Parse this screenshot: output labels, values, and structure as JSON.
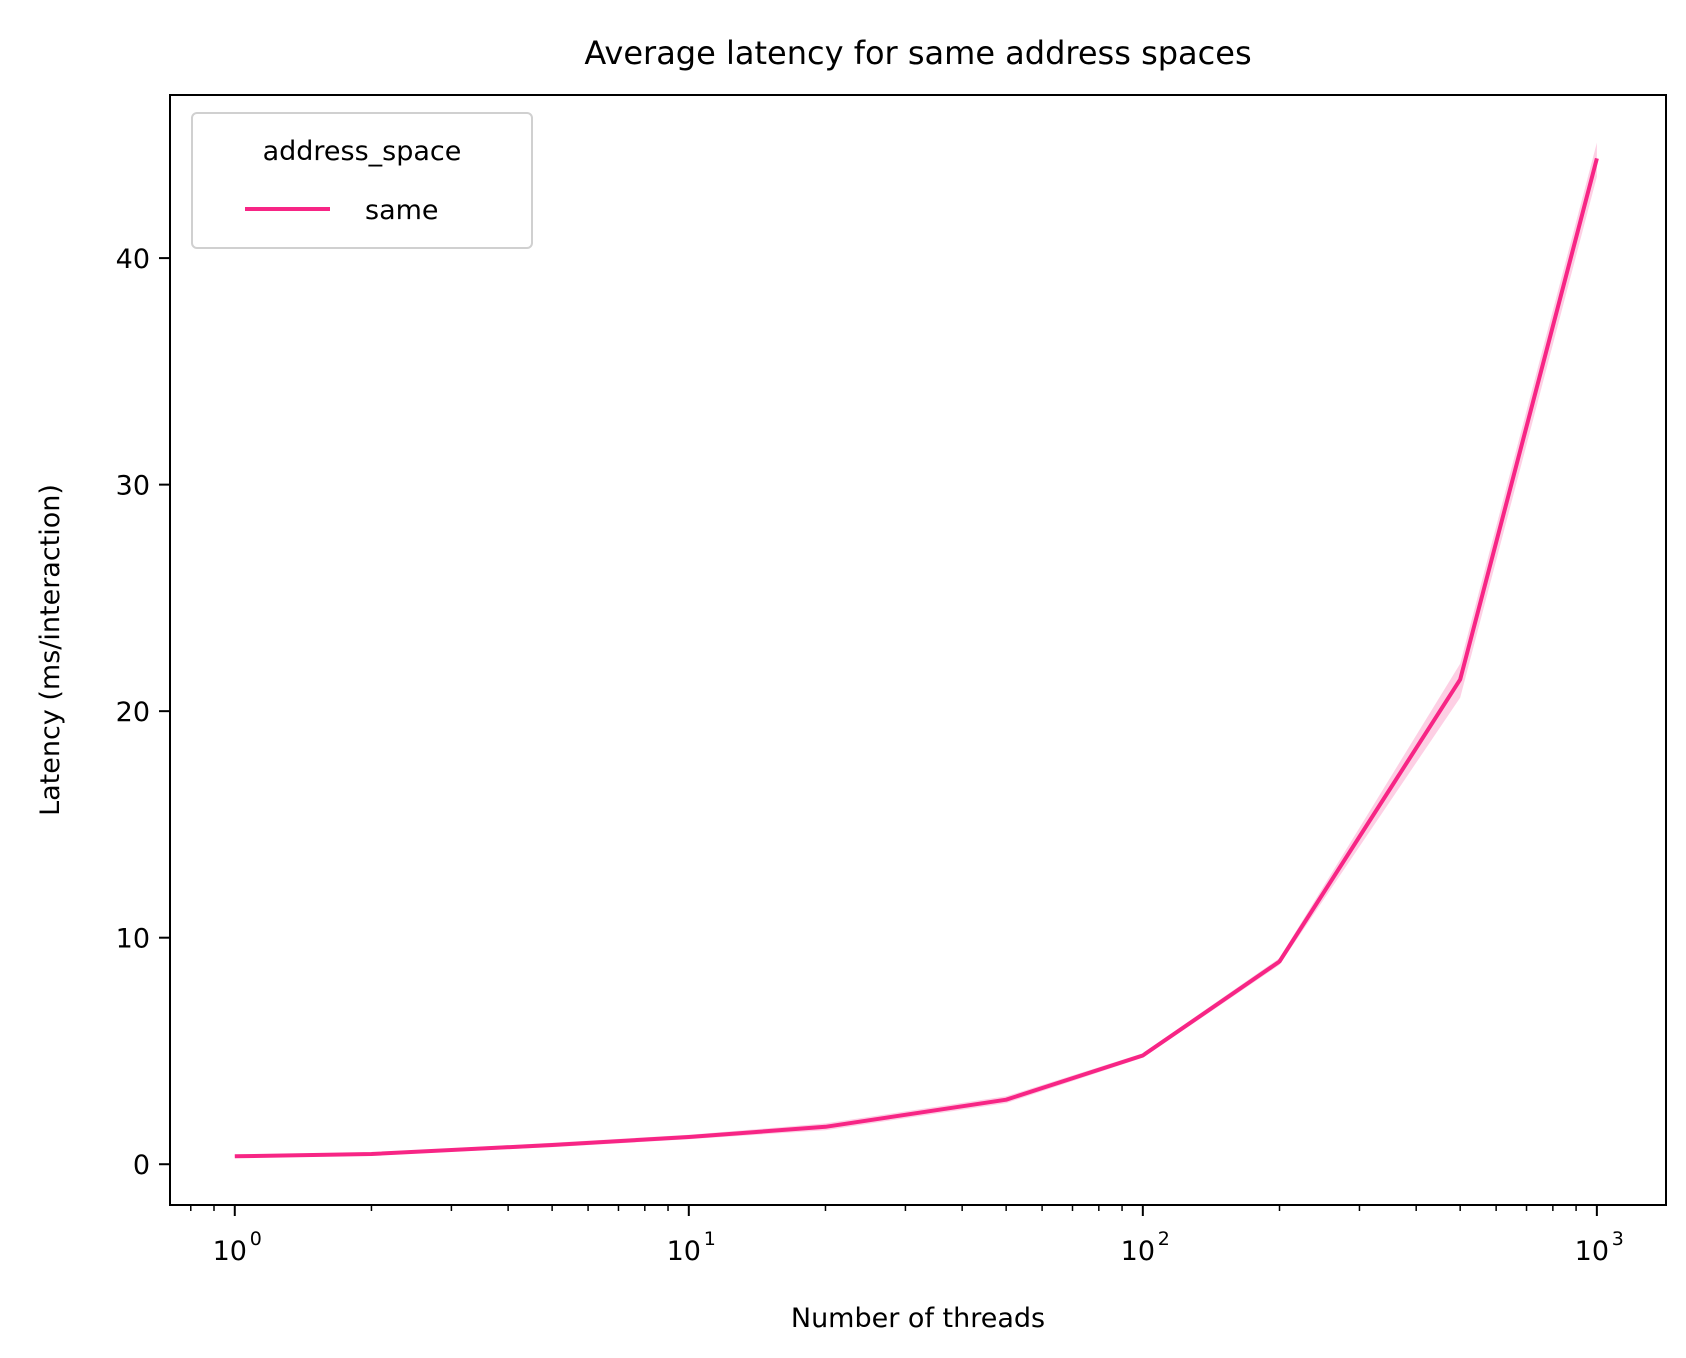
{
  "chart_data": {
    "type": "line",
    "title": "Average latency for same address spaces",
    "xlabel": "Number of threads",
    "ylabel": "Latency (ms/interaction)",
    "x_scale": "log",
    "xlim": [
      0.72,
      1420
    ],
    "ylim": [
      -1.8,
      47.2
    ],
    "x_ticks": [
      {
        "value": 1,
        "base": "10",
        "exp": "0"
      },
      {
        "value": 10,
        "base": "10",
        "exp": "1"
      },
      {
        "value": 100,
        "base": "10",
        "exp": "2"
      },
      {
        "value": 1000,
        "base": "10",
        "exp": "3"
      }
    ],
    "y_ticks": [
      {
        "value": 0,
        "label": "0"
      },
      {
        "value": 10,
        "label": "10"
      },
      {
        "value": 20,
        "label": "20"
      },
      {
        "value": 30,
        "label": "30"
      },
      {
        "value": 40,
        "label": "40"
      }
    ],
    "grid": false,
    "legend": {
      "title": "address_space",
      "placement": "top-left"
    },
    "series": [
      {
        "name": "same",
        "color": "#f72585",
        "x": [
          1,
          2,
          5,
          10,
          20,
          50,
          100,
          200,
          500,
          1000
        ],
        "y": [
          0.35,
          0.45,
          0.85,
          1.2,
          1.65,
          2.85,
          4.8,
          8.95,
          21.4,
          44.4
        ],
        "ci_lower": [
          0.3,
          0.4,
          0.75,
          1.1,
          1.5,
          2.7,
          4.7,
          8.8,
          20.6,
          43.6
        ],
        "ci_upper": [
          0.4,
          0.5,
          0.95,
          1.3,
          1.8,
          3.0,
          4.9,
          9.1,
          22.1,
          45.1
        ]
      }
    ]
  }
}
